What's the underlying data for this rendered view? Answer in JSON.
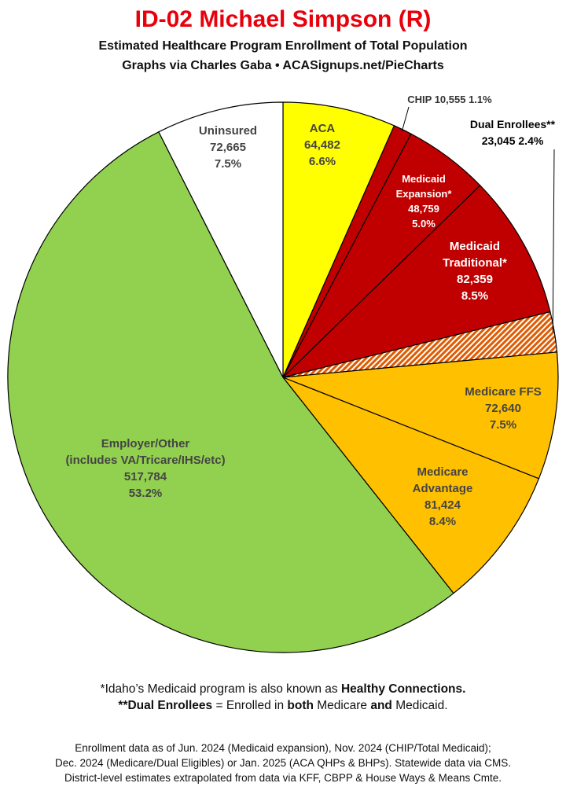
{
  "header": {
    "title": "ID-02 Michael Simpson (R)",
    "subtitle_line1": "Estimated Healthcare Program Enrollment of Total Population",
    "subtitle_line2": "Graphs via Charles Gaba  •  ACASignups.net/PieCharts"
  },
  "chart_data": {
    "type": "pie",
    "title": "ID-02 Michael Simpson (R)",
    "start": "12 o'clock",
    "direction": "clockwise",
    "slices": [
      {
        "key": "aca",
        "label_lines": [
          "ACA"
        ],
        "value": 64482,
        "value_text": "64,482",
        "pct": "6.6%",
        "color": "#ffff00",
        "text_color": "#444444"
      },
      {
        "key": "chip",
        "label_lines": [
          "CHIP"
        ],
        "value": 10555,
        "value_text": "10,555",
        "pct": "1.1%",
        "color": "#c00000",
        "text_color": "#333333"
      },
      {
        "key": "medicaid_expansion",
        "label_lines": [
          "Medicaid",
          "Expansion*"
        ],
        "value": 48759,
        "value_text": "48,759",
        "pct": "5.0%",
        "color": "#c00000",
        "text_color": "#ffffff"
      },
      {
        "key": "medicaid_traditional",
        "label_lines": [
          "Medicaid",
          "Traditional*"
        ],
        "value": 82359,
        "value_text": "82,359",
        "pct": "8.5%",
        "color": "#c00000",
        "text_color": "#ffffff"
      },
      {
        "key": "dual_enrollees",
        "label_lines": [
          "Dual Enrollees**"
        ],
        "value": 23045,
        "value_text": "23,045",
        "pct": "2.4%",
        "color": "#e05a00",
        "pattern": "hatch",
        "text_color": "#000000"
      },
      {
        "key": "medicare_ffs",
        "label_lines": [
          "Medicare FFS"
        ],
        "value": 72640,
        "value_text": "72,640",
        "pct": "7.5%",
        "color": "#ffc000",
        "text_color": "#444444"
      },
      {
        "key": "medicare_advantage",
        "label_lines": [
          "Medicare",
          "Advantage"
        ],
        "value": 81424,
        "value_text": "81,424",
        "pct": "8.4%",
        "color": "#ffc000",
        "text_color": "#444444"
      },
      {
        "key": "employer_other",
        "label_lines": [
          "Employer/Other",
          "(includes VA/Tricare/IHS/etc)"
        ],
        "value": 517784,
        "value_text": "517,784",
        "pct": "53.2%",
        "color": "#92d050",
        "text_color": "#444444"
      },
      {
        "key": "uninsured",
        "label_lines": [
          "Uninsured"
        ],
        "value": 72665,
        "value_text": "72,665",
        "pct": "7.5%",
        "color": "#ffffff",
        "text_color": "#444444"
      }
    ]
  },
  "notes": {
    "line1_prefix": "*Idaho’s Medicaid program is also known as ",
    "line1_bold": "Healthy Connections.",
    "line2_b1": "**Dual Enrollees",
    "line2_t1": " = Enrolled in ",
    "line2_b2": "both",
    "line2_t2": " Medicare ",
    "line2_b3": "and",
    "line2_t3": " Medicaid."
  },
  "source": {
    "line1": "Enrollment data as of Jun. 2024 (Medicaid expansion), Nov. 2024 (CHIP/Total Medicaid);",
    "line2": "Dec. 2024 (Medicare/Dual Eligibles) or Jan. 2025 (ACA QHPs & BHPs). Statewide data via CMS.",
    "line3": "District-level estimates extrapolated from data via KFF, CBPP & House Ways & Means Cmte."
  }
}
